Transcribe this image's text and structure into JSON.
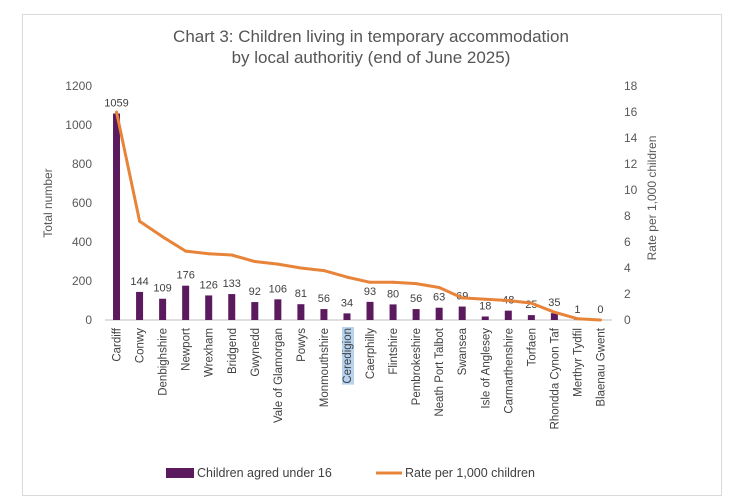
{
  "chart_data": {
    "type": "bar+line",
    "title_line1": "Chart 3: Children living in temporary accommodation",
    "title_line2": "by local authoritiy (end of June 2025)",
    "categories": [
      "Cardiff",
      "Conwy",
      "Denbighshire",
      "Newport",
      "Wrexham",
      "Bridgend",
      "Gwynedd",
      "Vale of Glamorgan",
      "Powys",
      "Monmouthshire",
      "Ceredigion",
      "Caerphilly",
      "Flintshire",
      "Pembrokeshire",
      "Neath Port Talbot",
      "Swansea",
      "Isle of Anglesey",
      "Carmarthenshire",
      "Torfaen",
      "Rhondda Cynon Taf",
      "Merthyr Tydfil",
      "Blaenau Gwent"
    ],
    "highlighted_category": "Ceredigion",
    "series": [
      {
        "name": "Children agred under 16",
        "type": "bar",
        "axis": "left",
        "color": "#5b1a5e",
        "values": [
          1059,
          144,
          109,
          176,
          126,
          133,
          92,
          106,
          81,
          56,
          34,
          93,
          80,
          56,
          63,
          69,
          18,
          48,
          25,
          35,
          1,
          0
        ]
      },
      {
        "name": "Rate per 1,000 children",
        "type": "line",
        "axis": "right",
        "color": "#e8843a",
        "values": [
          16.0,
          7.6,
          6.4,
          5.3,
          5.1,
          5.0,
          4.5,
          4.3,
          4.0,
          3.8,
          3.3,
          2.9,
          2.9,
          2.8,
          2.5,
          1.7,
          1.6,
          1.5,
          1.3,
          0.6,
          0.1,
          0.0
        ]
      }
    ],
    "ylabel_left": "Total number",
    "ylabel_right": "Rate per 1,000 children",
    "ylim_left": [
      0,
      1200
    ],
    "ylim_right": [
      0,
      18
    ],
    "yticks_left": [
      0,
      200,
      400,
      600,
      800,
      1000,
      1200
    ],
    "yticks_right": [
      0,
      2,
      4,
      6,
      8,
      10,
      12,
      14,
      16,
      18
    ],
    "grid": false,
    "legend_position": "bottom"
  }
}
